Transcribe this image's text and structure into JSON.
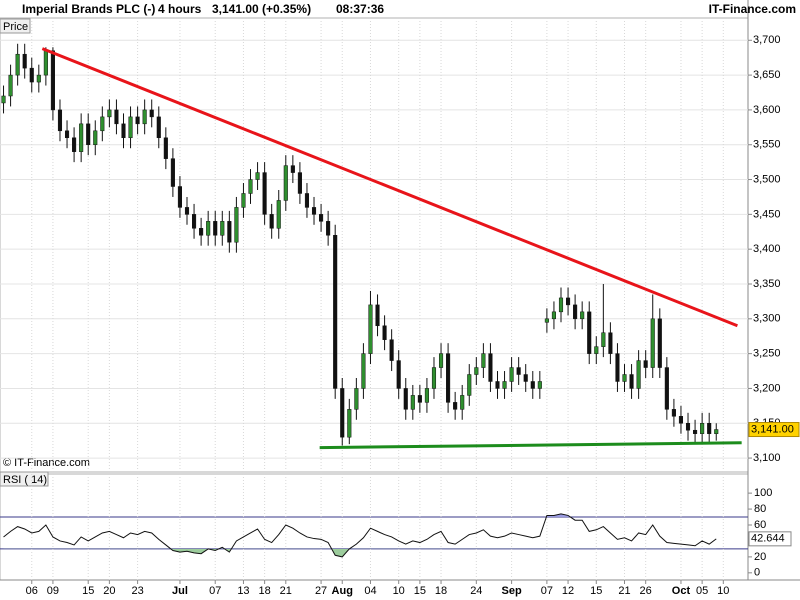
{
  "chart_data": {
    "type": "candlestick",
    "title": "Imperial Brands PLC (-)",
    "interval": "4 hours",
    "quote": "3,141.00 (+0.35%)",
    "time": "08:37:36",
    "source": "IT-Finance.com",
    "y_label": "Price",
    "watermark": "© IT-Finance.com",
    "current_label": "3,141.00",
    "up_color": "#2f8f2f",
    "down_color": "#111111",
    "grid": true,
    "categories": [
      null,
      null,
      null,
      null,
      "06",
      null,
      null,
      "09",
      null,
      null,
      null,
      null,
      "15",
      null,
      null,
      "20",
      null,
      null,
      null,
      "23",
      null,
      null,
      null,
      null,
      null,
      "Jul",
      null,
      null,
      null,
      null,
      "07",
      null,
      null,
      null,
      "13",
      null,
      null,
      "18",
      null,
      null,
      "21",
      null,
      null,
      null,
      null,
      "27",
      null,
      null,
      "Aug",
      null,
      null,
      null,
      "04",
      null,
      null,
      null,
      "10",
      null,
      null,
      "15",
      null,
      null,
      "18",
      null,
      null,
      null,
      null,
      "24",
      null,
      null,
      null,
      null,
      "Sep",
      null,
      null,
      null,
      null,
      "07",
      null,
      null,
      "12",
      null,
      null,
      null,
      "15",
      null,
      null,
      null,
      "21",
      null,
      null,
      "26",
      null,
      null,
      null,
      null,
      "Oct",
      null,
      null,
      "05",
      null,
      null,
      "10",
      null,
      null,
      null
    ],
    "open": [
      3610,
      3620,
      3650,
      3680,
      3660,
      3640,
      3650,
      3685,
      3600,
      3570,
      3560,
      3540,
      3580,
      3550,
      3570,
      3590,
      3600,
      3580,
      3560,
      3590,
      3580,
      3600,
      3590,
      3560,
      3530,
      3490,
      3460,
      3450,
      3430,
      3420,
      3440,
      3420,
      3440,
      3410,
      3460,
      3480,
      3500,
      3510,
      3450,
      3430,
      3470,
      3520,
      3510,
      3480,
      3460,
      3450,
      3440,
      3420,
      3200,
      3130,
      3170,
      3200,
      3250,
      3320,
      3290,
      3270,
      3240,
      3200,
      3170,
      3190,
      3180,
      3200,
      3230,
      3250,
      3180,
      3170,
      3190,
      3220,
      3230,
      3250,
      3210,
      3200,
      3210,
      3230,
      3220,
      3210,
      3200,
      3295,
      3300,
      3310,
      3330,
      3320,
      3300,
      3310,
      3250,
      3260,
      3280,
      3250,
      3210,
      3220,
      3200,
      3240,
      3230,
      3300,
      3230,
      3170,
      3160,
      3150,
      3140,
      3135,
      3150,
      3135,
      null,
      null,
      null,
      null
    ],
    "high": [
      3635,
      3665,
      3695,
      3695,
      3675,
      3665,
      3690,
      3690,
      3615,
      3585,
      3575,
      3595,
      3595,
      3585,
      3605,
      3615,
      3615,
      3595,
      3605,
      3605,
      3615,
      3615,
      3605,
      3575,
      3545,
      3505,
      3475,
      3465,
      3445,
      3455,
      3455,
      3455,
      3455,
      3475,
      3495,
      3515,
      3525,
      3525,
      3465,
      3485,
      3535,
      3535,
      3525,
      3495,
      3475,
      3465,
      3455,
      3435,
      3215,
      3185,
      3215,
      3265,
      3340,
      3335,
      3305,
      3285,
      3255,
      3215,
      3205,
      3205,
      3215,
      3245,
      3265,
      3265,
      3195,
      3205,
      3235,
      3245,
      3265,
      3265,
      3225,
      3225,
      3245,
      3245,
      3235,
      3225,
      3225,
      3315,
      3325,
      3345,
      3345,
      3335,
      3325,
      3325,
      3275,
      3350,
      3295,
      3265,
      3235,
      3235,
      3255,
      3255,
      3335,
      3315,
      3245,
      3185,
      3175,
      3165,
      3155,
      3165,
      3165,
      3150,
      null,
      null,
      null,
      null
    ],
    "low": [
      3595,
      3605,
      3635,
      3645,
      3625,
      3625,
      3635,
      3585,
      3555,
      3545,
      3525,
      3525,
      3535,
      3535,
      3555,
      3575,
      3565,
      3545,
      3545,
      3565,
      3565,
      3575,
      3545,
      3515,
      3475,
      3445,
      3435,
      3415,
      3405,
      3405,
      3405,
      3405,
      3395,
      3395,
      3445,
      3465,
      3485,
      3435,
      3415,
      3415,
      3455,
      3495,
      3465,
      3445,
      3435,
      3425,
      3405,
      3185,
      3118,
      3120,
      3155,
      3185,
      3235,
      3275,
      3255,
      3225,
      3185,
      3155,
      3155,
      3165,
      3165,
      3185,
      3215,
      3165,
      3155,
      3155,
      3175,
      3205,
      3215,
      3195,
      3185,
      3185,
      3195,
      3205,
      3195,
      3185,
      3185,
      3280,
      3285,
      3295,
      3305,
      3285,
      3285,
      3235,
      3235,
      3245,
      3235,
      3195,
      3195,
      3185,
      3185,
      3215,
      3215,
      3215,
      3155,
      3145,
      3135,
      3125,
      3120,
      3120,
      3120,
      3125,
      null,
      null,
      null,
      null
    ],
    "close": [
      3620,
      3650,
      3680,
      3660,
      3640,
      3650,
      3685,
      3600,
      3570,
      3560,
      3540,
      3580,
      3550,
      3570,
      3590,
      3600,
      3580,
      3560,
      3590,
      3580,
      3600,
      3590,
      3560,
      3530,
      3490,
      3460,
      3450,
      3430,
      3420,
      3440,
      3420,
      3440,
      3410,
      3460,
      3480,
      3500,
      3510,
      3450,
      3430,
      3470,
      3520,
      3510,
      3480,
      3460,
      3450,
      3440,
      3420,
      3200,
      3130,
      3170,
      3200,
      3250,
      3320,
      3290,
      3270,
      3240,
      3200,
      3170,
      3190,
      3180,
      3200,
      3230,
      3250,
      3180,
      3170,
      3190,
      3220,
      3230,
      3250,
      3210,
      3200,
      3210,
      3230,
      3220,
      3210,
      3200,
      3210,
      3300,
      3310,
      3330,
      3320,
      3300,
      3310,
      3250,
      3260,
      3280,
      3250,
      3210,
      3220,
      3200,
      3240,
      3230,
      3300,
      3230,
      3170,
      3160,
      3150,
      3140,
      3135,
      3150,
      3135,
      3141,
      null,
      null,
      null,
      null
    ],
    "ylim": [
      3080,
      3732
    ],
    "yticks": [
      {
        "value": 3100,
        "label": "3,100"
      },
      {
        "value": 3150,
        "label": "3,150"
      },
      {
        "value": 3200,
        "label": "3,200"
      },
      {
        "value": 3250,
        "label": "3,250"
      },
      {
        "value": 3300,
        "label": "3,300"
      },
      {
        "value": 3350,
        "label": "3,350"
      },
      {
        "value": 3400,
        "label": "3,400"
      },
      {
        "value": 3450,
        "label": "3,450"
      },
      {
        "value": 3500,
        "label": "3,500"
      },
      {
        "value": 3550,
        "label": "3,550"
      },
      {
        "value": 3600,
        "label": "3,600"
      },
      {
        "value": 3650,
        "label": "3,650"
      },
      {
        "value": 3700,
        "label": "3,700"
      }
    ],
    "trendlines": [
      {
        "color": "#e8141a",
        "x": [
          5.5,
          104
        ],
        "y": [
          3688,
          3290
        ]
      },
      {
        "color": "#1c8c1c",
        "x": [
          44.8,
          104.6
        ],
        "y": [
          3115,
          3122
        ]
      }
    ],
    "rsi": {
      "label": "RSI ( 14)",
      "color": "#111111",
      "oversold_color": "#9ccc9c",
      "overbought_color": "#9a9ae0",
      "values": [
        45,
        52,
        58,
        55,
        50,
        52,
        60,
        45,
        40,
        38,
        35,
        45,
        40,
        45,
        50,
        52,
        48,
        44,
        50,
        48,
        52,
        50,
        42,
        35,
        28,
        26,
        27,
        25,
        24,
        30,
        28,
        32,
        26,
        40,
        45,
        50,
        55,
        42,
        38,
        48,
        60,
        56,
        50,
        45,
        43,
        42,
        38,
        22,
        20,
        30,
        36,
        44,
        56,
        52,
        48,
        45,
        40,
        36,
        40,
        38,
        42,
        48,
        52,
        38,
        36,
        42,
        48,
        50,
        54,
        46,
        44,
        46,
        50,
        48,
        46,
        44,
        46,
        72,
        72,
        74,
        72,
        66,
        66,
        52,
        54,
        58,
        50,
        42,
        44,
        40,
        50,
        48,
        60,
        46,
        38,
        37,
        36,
        35,
        34,
        40,
        36,
        42.644,
        null,
        null,
        null,
        null
      ],
      "ylim": [
        -9,
        124
      ],
      "yticks": [
        0,
        20,
        40,
        60,
        80,
        100
      ],
      "levels": [
        30,
        70
      ]
    }
  }
}
